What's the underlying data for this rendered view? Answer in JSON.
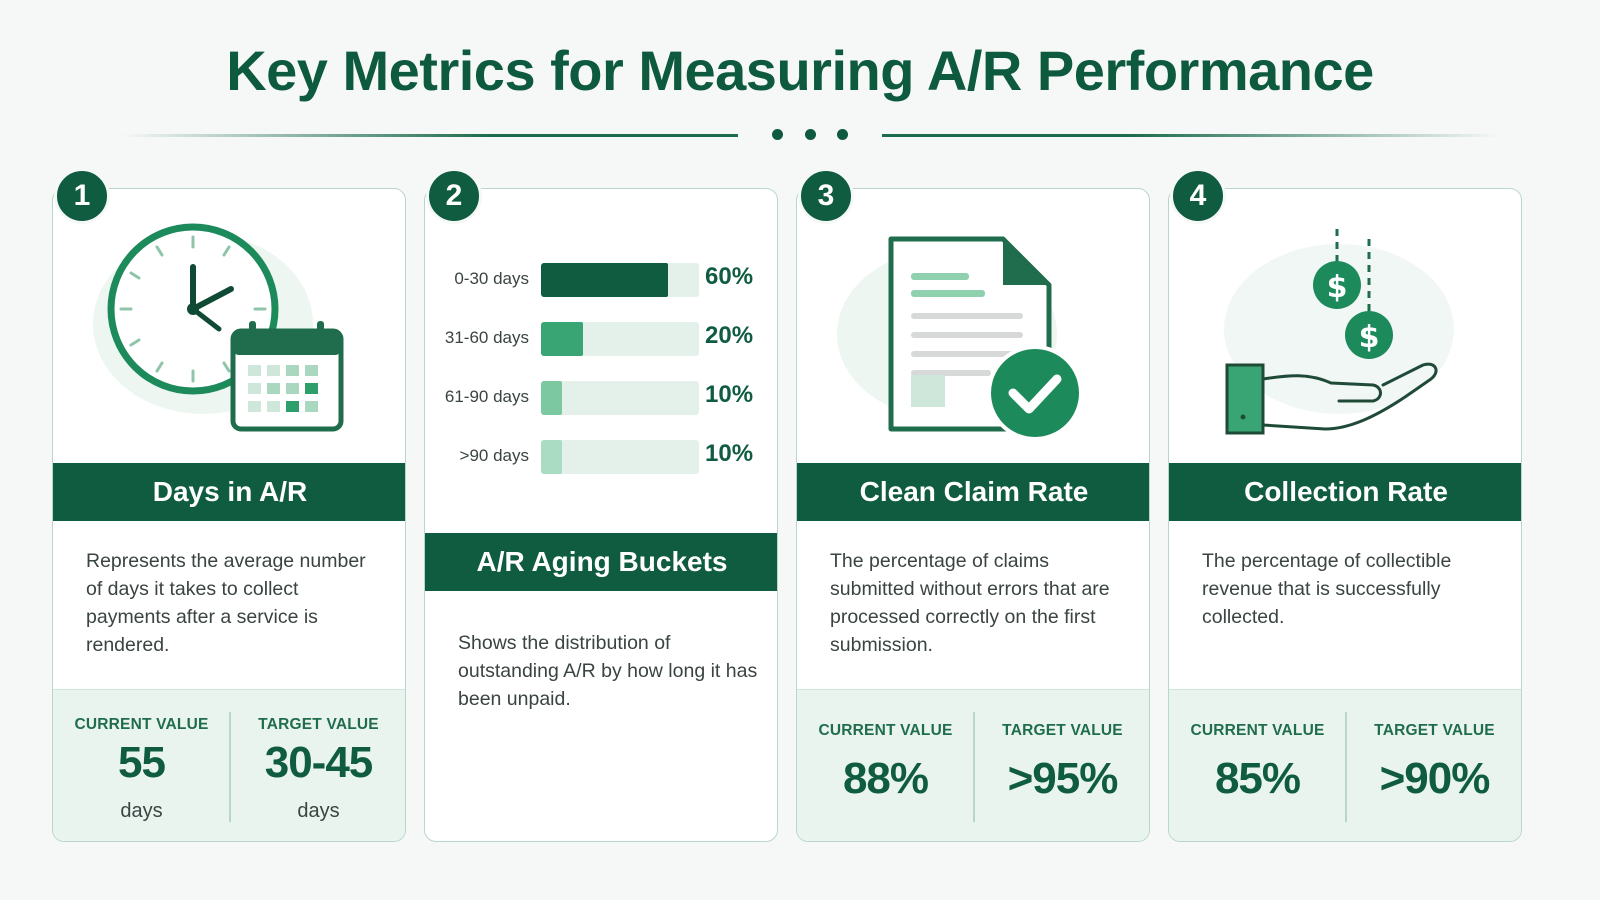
{
  "title": "Key Metrics for Measuring A/R Performance",
  "colors": {
    "primary": "#0f5c40",
    "accent": "#2e9e6b",
    "light": "#8fd0ae",
    "pale": "#e3f1ea"
  },
  "cards": [
    {
      "number": "1",
      "icon": "clock-calendar-icon",
      "heading": "Days in A/R",
      "description": "Represents the average number of days it takes to collect payments after a service is rendered.",
      "current_label": "CURRENT VALUE",
      "current_value": "55",
      "current_unit": "days",
      "target_label": "TARGET VALUE",
      "target_value": "30-45",
      "target_unit": "days"
    },
    {
      "number": "2",
      "heading": "A/R Aging Buckets",
      "description": "Shows the distribution of outstanding A/R by how long it has been unpaid.",
      "chart_data": {
        "type": "bar",
        "categories": [
          "0-30 days",
          "31-60 days",
          "61-90 days",
          ">90 days"
        ],
        "values": [
          60,
          20,
          10,
          10
        ],
        "value_labels": [
          "60%",
          "20%",
          "10%",
          "10%"
        ],
        "ylim": [
          0,
          100
        ],
        "orientation": "horizontal",
        "bar_colors": [
          "#0f5c40",
          "#3aa574",
          "#7cc9a1",
          "#a9dcc2"
        ]
      }
    },
    {
      "number": "3",
      "icon": "document-check-icon",
      "heading": "Clean Claim Rate",
      "description": "The percentage of claims submitted without errors that are processed correctly on the first submission.",
      "current_label": "CURRENT VALUE",
      "current_value": "88%",
      "target_label": "TARGET VALUE",
      "target_value": ">95%"
    },
    {
      "number": "4",
      "icon": "hand-dollar-icon",
      "heading": "Collection Rate",
      "description": "The percentage of collectible revenue that is successfully collected.",
      "current_label": "CURRENT VALUE",
      "current_value": "85%",
      "target_label": "TARGET VALUE",
      "target_value": ">90%"
    }
  ]
}
